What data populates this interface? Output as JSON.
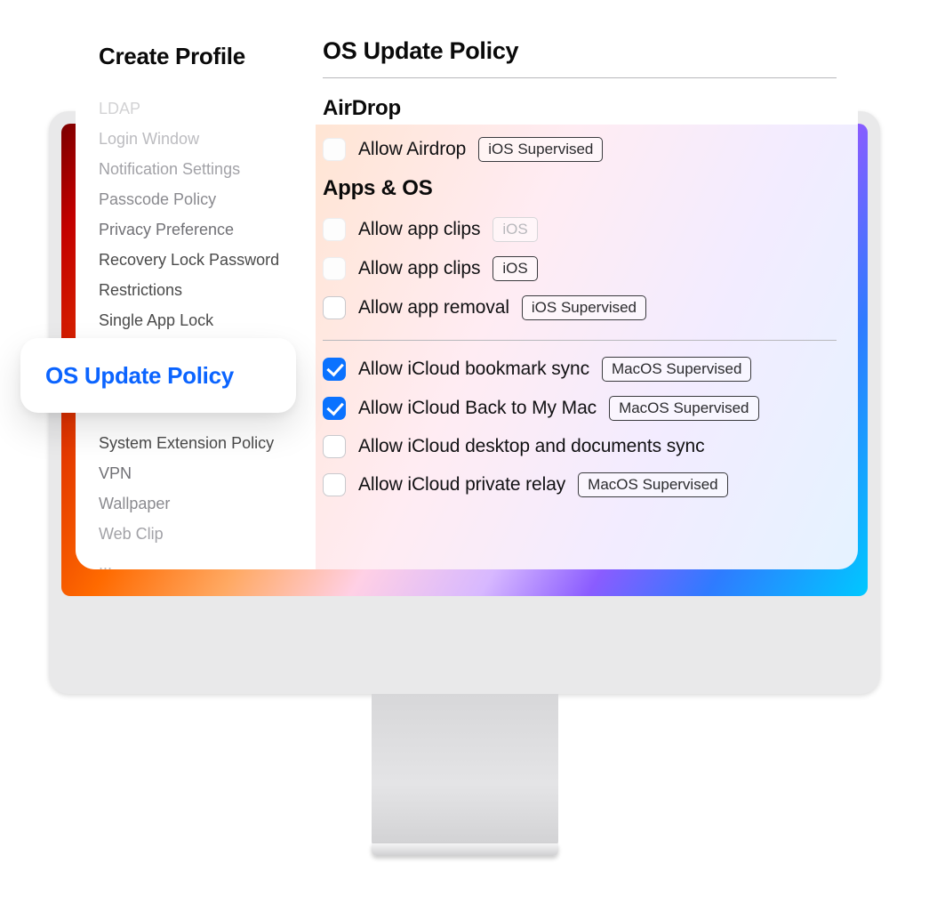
{
  "colors": {
    "accent": "#0b72ff",
    "link": "#0b64ff",
    "text": "#0a0a0a",
    "muted": "#8a8a8f",
    "border": "#b8b8bc",
    "checkbox_border": "#c9c9cd",
    "background": "#ffffff"
  },
  "sidebar": {
    "title": "Create Profile",
    "items": [
      {
        "label": "LDAP",
        "fade": "faded1"
      },
      {
        "label": "Login Window",
        "fade": "faded2"
      },
      {
        "label": "Notification Settings",
        "fade": "faded3"
      },
      {
        "label": "Passcode Policy",
        "fade": "faded4"
      },
      {
        "label": "Privacy Preference",
        "fade": "faded5"
      },
      {
        "label": "Recovery Lock Password",
        "fade": ""
      },
      {
        "label": "Restrictions",
        "fade": ""
      },
      {
        "label": "Single App Lock",
        "fade": ""
      },
      {
        "label": "System Extension Policy",
        "fade": ""
      },
      {
        "label": "VPN",
        "fade": "faded5"
      },
      {
        "label": "Wallpaper",
        "fade": "faded4"
      },
      {
        "label": "Web Clip",
        "fade": "faded3"
      },
      {
        "label": "...",
        "fade": "faded2"
      }
    ],
    "gap_after_index": 7
  },
  "active_item": {
    "label": "OS Update Policy"
  },
  "main": {
    "title": "OS Update Policy",
    "sections": [
      {
        "heading": "AirDrop",
        "rows": [
          {
            "label": "Allow Airdrop",
            "tag": "iOS Supervised",
            "checked": false,
            "soft": true,
            "faded_tag": false
          }
        ]
      },
      {
        "heading": "Apps & OS",
        "rows": [
          {
            "label": "Allow app clips",
            "tag": "iOS",
            "checked": false,
            "soft": true,
            "faded_tag": true
          },
          {
            "label": "Allow app clips",
            "tag": "iOS",
            "checked": false,
            "soft": true,
            "faded_tag": false
          },
          {
            "label": "Allow app removal",
            "tag": "iOS Supervised",
            "checked": false,
            "soft": false,
            "faded_tag": false
          }
        ]
      },
      {
        "heading": "",
        "rows": [
          {
            "label": "Allow iCloud bookmark sync",
            "tag": "MacOS Supervised",
            "checked": true,
            "soft": false,
            "faded_tag": false
          },
          {
            "label": "Allow iCloud Back to My Mac",
            "tag": "MacOS Supervised",
            "checked": true,
            "soft": false,
            "faded_tag": false
          },
          {
            "label": "Allow iCloud desktop and documents sync",
            "tag": "",
            "checked": false,
            "soft": false,
            "faded_tag": false
          },
          {
            "label": "Allow iCloud private relay",
            "tag": "MacOS Supervised",
            "checked": false,
            "soft": false,
            "faded_tag": false
          }
        ]
      }
    ]
  }
}
